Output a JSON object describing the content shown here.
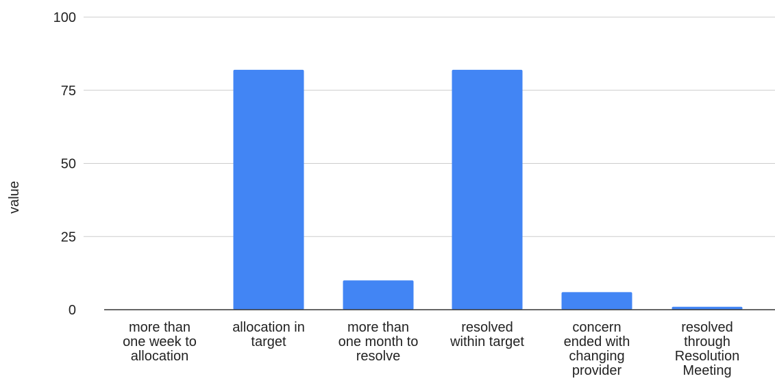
{
  "chart_data": {
    "type": "bar",
    "title": "",
    "xlabel": "",
    "ylabel": "value",
    "ylim": [
      0,
      100
    ],
    "yticks": [
      0,
      25,
      50,
      75,
      100
    ],
    "grid": true,
    "legend": "none",
    "categories": [
      "more than one week to allocation",
      "allocation in target",
      "more than one month to resolve",
      "resolved within target",
      "concern ended with changing provider",
      "resolved through Resolution Meeting"
    ],
    "category_lines": [
      [
        "more than",
        "one week to",
        "allocation"
      ],
      [
        "allocation in",
        "target"
      ],
      [
        "more than",
        "one month to",
        "resolve"
      ],
      [
        "resolved",
        "within target"
      ],
      [
        "concern",
        "ended with",
        "changing",
        "provider"
      ],
      [
        "resolved",
        "through",
        "Resolution",
        "Meeting"
      ]
    ],
    "values": [
      0,
      82,
      10,
      82,
      6,
      1
    ],
    "colors": {
      "bar": "#4285f4",
      "grid": "#cccccc",
      "axis": "#333333",
      "text": "#222222"
    }
  }
}
